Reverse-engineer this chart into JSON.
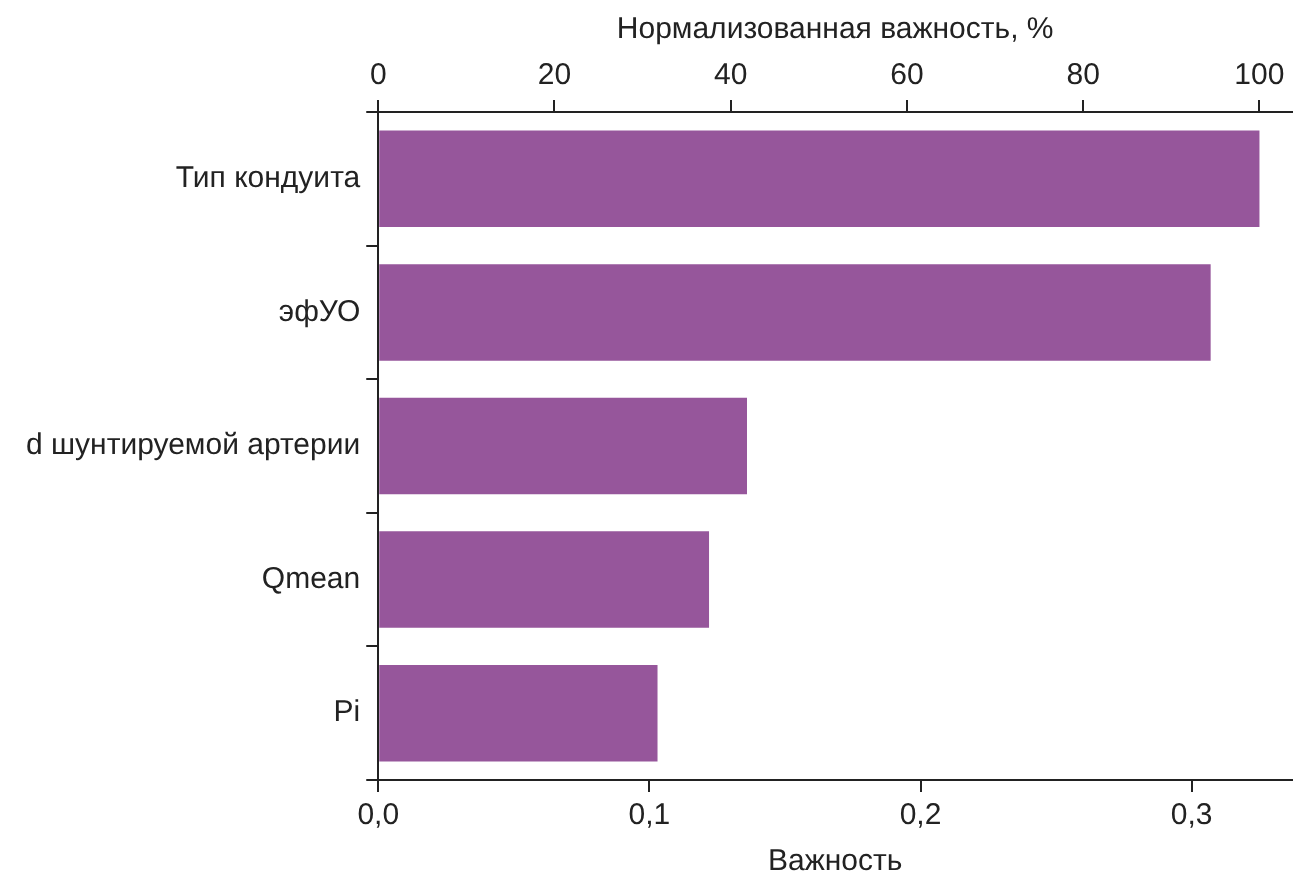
{
  "chart_data": {
    "type": "bar",
    "orientation": "horizontal",
    "xlabel": "Важность",
    "x2label": "Нормализованная важность, %",
    "categories": [
      "Тип кондуита",
      "эфУО",
      "d шунтируемой артерии",
      "Qmean",
      "Pi"
    ],
    "values": [
      0.325,
      0.307,
      0.136,
      0.122,
      0.103
    ],
    "color": "#96569b",
    "xlim": [
      0,
      0.337
    ],
    "xticks": [
      {
        "value": 0,
        "label": "0,0"
      },
      {
        "value": 0.1,
        "label": "0,1"
      },
      {
        "value": 0.2,
        "label": "0,2"
      },
      {
        "value": 0.3,
        "label": "0,3"
      }
    ],
    "x2lim": [
      0,
      103.7
    ],
    "x2ticks": [
      0,
      20,
      40,
      60,
      80,
      100
    ],
    "grid": false,
    "legend": false
  }
}
